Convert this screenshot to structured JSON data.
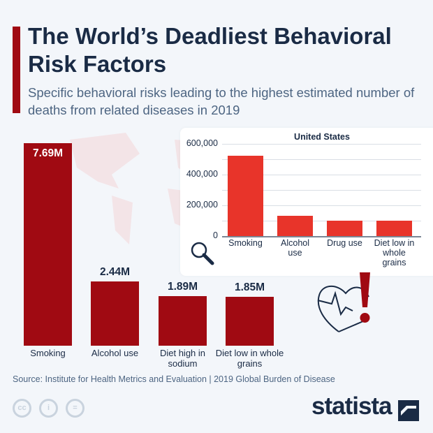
{
  "header": {
    "title": "The World’s Deadliest Behavioral Risk Factors",
    "subtitle": "Specific behavioral risks leading to the highest estimated number of deaths from related diseases in 2019"
  },
  "chart_data": [
    {
      "type": "bar",
      "title": "",
      "categories": [
        "Smoking",
        "Alcohol use",
        "Diet high in sodium",
        "Diet low in whole grains"
      ],
      "values": [
        7.69,
        2.44,
        1.89,
        1.85
      ],
      "value_labels": [
        "7.69M",
        "2.44M",
        "1.89M",
        "1.85M"
      ],
      "unit": "M",
      "color": "#a00a12",
      "grid": false
    },
    {
      "type": "bar",
      "title": "United States",
      "categories": [
        "Smoking",
        "Alcohol use",
        "Drug use",
        "Diet low in whole grains"
      ],
      "values": [
        524000,
        134000,
        101000,
        98000
      ],
      "ylim": [
        0,
        600000
      ],
      "ticks": [
        "0",
        "200,000",
        "400,000",
        "600,000"
      ],
      "color": "#e8342a",
      "grid": true
    }
  ],
  "footer": {
    "source": "Source: Institute for Health Metrics and Evaluation | 2019 Global Burden of Disease",
    "license_icons": [
      "cc",
      "by",
      "nd"
    ],
    "license_labels": [
      "cc",
      "i",
      "="
    ],
    "logo": "statista"
  },
  "icons": [
    "world-map",
    "magnifier-icon",
    "heart-exclamation-icon"
  ]
}
